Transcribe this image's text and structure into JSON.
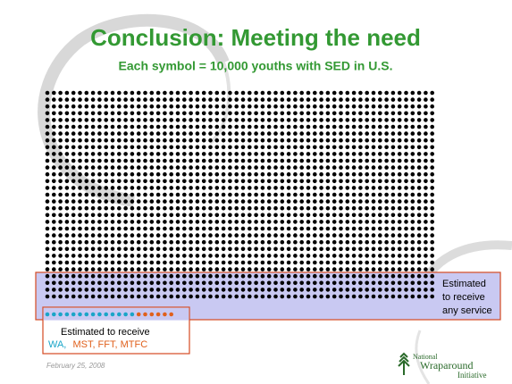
{
  "title": "Conclusion: Meeting the need",
  "subtitle": "Each symbol = 10,000 youths with SED in U.S.",
  "pictogram": {
    "columns": 60,
    "rows_no_service": 27,
    "rows_any_service": 4,
    "wraparound_symbols": 14,
    "evidence_based_symbols": 6
  },
  "any_service_label": [
    "Estimated",
    "to receive",
    "any service"
  ],
  "specialized_label": {
    "line1": "Estimated to receive",
    "wraparound": "WA,",
    "evidence_based": "MST, FFT, MTFC"
  },
  "date": "February 25, 2008",
  "logo": {
    "top": "National",
    "middle": "Wraparound",
    "bottom": "Initiative"
  }
}
